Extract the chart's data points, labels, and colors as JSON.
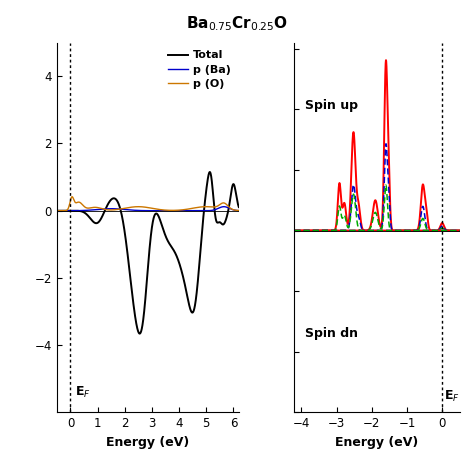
{
  "title": "Ba$_{0.75}$Cr$_{0.25}$O",
  "left_xlim": [
    -0.5,
    6.2
  ],
  "left_ylim": [
    -6,
    5
  ],
  "right_xlim": [
    -4.2,
    0.5
  ],
  "right_ylim": [
    -6,
    6.2
  ],
  "left_xlabel": "Energy (eV)",
  "right_xlabel": "Energy (eV)",
  "left_yticks": [
    -4,
    -2,
    0,
    2,
    4
  ],
  "right_yticks": [
    -6,
    -4,
    -2,
    0,
    2,
    4,
    6
  ],
  "right_xticks": [
    -4,
    -3,
    -2,
    -1,
    0
  ],
  "left_xticks": [
    0,
    1,
    2,
    3,
    4,
    5,
    6
  ],
  "ef_label": "E$_F$",
  "spin_up_label": "Spin up",
  "spin_dn_label": "Spin dn",
  "total_color": "#000000",
  "p_ba_color": "#0000cc",
  "p_o_color": "#cc7700",
  "d_cr_color": "#ff0000",
  "eg_color": "#0000cc",
  "t2g_color": "#00aa00"
}
